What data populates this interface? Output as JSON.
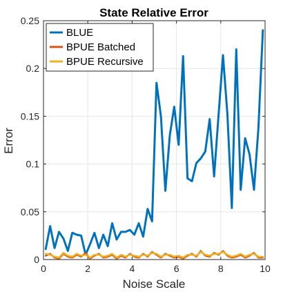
{
  "chart_data": {
    "type": "line",
    "title": "State Relative Error",
    "xlabel": "Noise Scale",
    "ylabel": "Error",
    "xlim": [
      0,
      10
    ],
    "ylim": [
      0,
      0.25
    ],
    "xticks": [
      0,
      2,
      4,
      6,
      8,
      10
    ],
    "xtick_labels": [
      "0",
      "2",
      "4",
      "6",
      "8",
      "10"
    ],
    "yticks": [
      0,
      0.05,
      0.1,
      0.15,
      0.2,
      0.25
    ],
    "ytick_labels": [
      "0",
      "0.05",
      "0.1",
      "0.15",
      "0.2",
      "0.25"
    ],
    "grid": true,
    "legend_position": "top-left",
    "x": [
      0.1,
      0.3,
      0.5,
      0.7,
      0.9,
      1.1,
      1.3,
      1.5,
      1.7,
      1.9,
      2.1,
      2.3,
      2.5,
      2.7,
      2.9,
      3.1,
      3.3,
      3.5,
      3.7,
      3.9,
      4.1,
      4.3,
      4.5,
      4.7,
      4.9,
      5.1,
      5.3,
      5.5,
      5.7,
      5.9,
      6.1,
      6.3,
      6.5,
      6.7,
      6.9,
      7.1,
      7.3,
      7.5,
      7.7,
      7.9,
      8.1,
      8.3,
      8.5,
      8.7,
      8.9,
      9.1,
      9.3,
      9.5,
      9.7,
      9.9
    ],
    "series": [
      {
        "name": "BLUE",
        "color": "#0072BD",
        "values": [
          0.011,
          0.035,
          0.012,
          0.029,
          0.022,
          0.009,
          0.028,
          0.026,
          0.025,
          0.005,
          0.016,
          0.028,
          0.012,
          0.026,
          0.014,
          0.038,
          0.021,
          0.029,
          0.029,
          0.031,
          0.026,
          0.038,
          0.024,
          0.053,
          0.04,
          0.185,
          0.15,
          0.072,
          0.13,
          0.16,
          0.12,
          0.213,
          0.085,
          0.082,
          0.101,
          0.106,
          0.113,
          0.147,
          0.087,
          0.151,
          0.214,
          0.152,
          0.054,
          0.22,
          0.073,
          0.127,
          0.11,
          0.073,
          0.138,
          0.24
        ]
      },
      {
        "name": "BPUE Batched",
        "color": "#D95319",
        "values": [
          0.004,
          0.006,
          0.002,
          0.001,
          0.006,
          0.003,
          0.002,
          0.005,
          0.003,
          0.007,
          0.001,
          0.004,
          0.006,
          0.002,
          0.003,
          0.005,
          0.001,
          0.004,
          0.002,
          0.006,
          0.003,
          0.002,
          0.006,
          0.003,
          0.008,
          0.005,
          0.002,
          0.006,
          0.004,
          0.002,
          0.003,
          0.001,
          0.004,
          0.006,
          0.003,
          0.009,
          0.004,
          0.003,
          0.007,
          0.005,
          0.009,
          0.004,
          0.002,
          0.003,
          0.005,
          0.002,
          0.004,
          0.007,
          0.002,
          0.002
        ]
      },
      {
        "name": "BPUE Recursive",
        "color": "#EDB120",
        "values": [
          0.006,
          0.005,
          0.003,
          0.002,
          0.007,
          0.004,
          0.003,
          0.006,
          0.004,
          0.005,
          0.002,
          0.005,
          0.005,
          0.003,
          0.004,
          0.006,
          0.002,
          0.005,
          0.003,
          0.005,
          0.004,
          0.003,
          0.005,
          0.004,
          0.007,
          0.006,
          0.003,
          0.005,
          0.005,
          0.003,
          0.004,
          0.002,
          0.005,
          0.005,
          0.004,
          0.008,
          0.005,
          0.004,
          0.006,
          0.006,
          0.008,
          0.005,
          0.003,
          0.004,
          0.006,
          0.003,
          0.005,
          0.006,
          0.003,
          0.003
        ]
      }
    ]
  }
}
